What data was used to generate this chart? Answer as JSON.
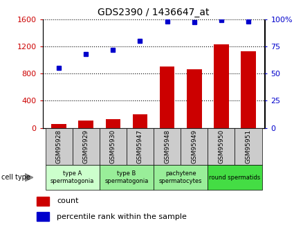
{
  "title": "GDS2390 / 1436647_at",
  "samples": [
    "GSM95928",
    "GSM95929",
    "GSM95930",
    "GSM95947",
    "GSM95948",
    "GSM95949",
    "GSM95950",
    "GSM95951"
  ],
  "counts": [
    60,
    110,
    130,
    200,
    900,
    860,
    1230,
    1130
  ],
  "percentiles": [
    55,
    68,
    72,
    80,
    98,
    97,
    99,
    98
  ],
  "left_ylim": [
    0,
    1600
  ],
  "right_ylim": [
    0,
    100
  ],
  "left_yticks": [
    0,
    400,
    800,
    1200,
    1600
  ],
  "right_yticks": [
    0,
    25,
    50,
    75,
    100
  ],
  "right_yticklabels": [
    "0",
    "25",
    "50",
    "75",
    "100%"
  ],
  "bar_color": "#cc0000",
  "dot_color": "#0000cc",
  "gsm_box_color": "#cccccc",
  "cell_groups": [
    {
      "start": 0,
      "end": 1,
      "label": "type A\nspermatogonia",
      "color": "#ccffcc"
    },
    {
      "start": 2,
      "end": 3,
      "label": "type B\nspermatogonia",
      "color": "#99ee99"
    },
    {
      "start": 4,
      "end": 5,
      "label": "pachytene\nspermatocytes",
      "color": "#99ee99"
    },
    {
      "start": 6,
      "end": 7,
      "label": "round spermatids",
      "color": "#44dd44"
    }
  ],
  "left_tick_color": "#cc0000",
  "right_tick_color": "#0000cc",
  "background_color": "#ffffff"
}
